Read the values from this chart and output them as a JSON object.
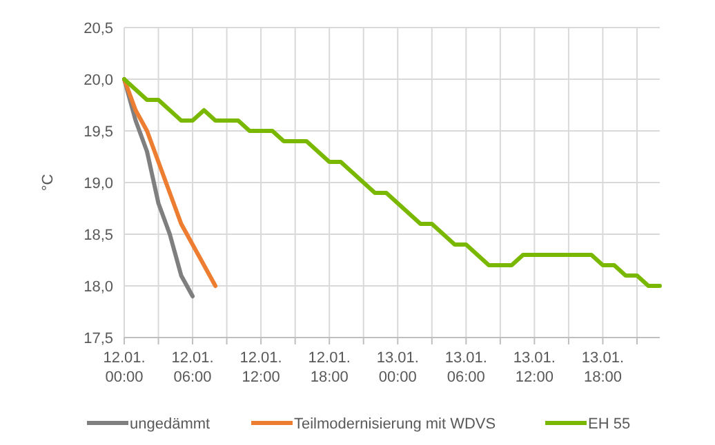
{
  "chart_data": {
    "type": "line",
    "ylabel": "°C",
    "categories": [
      "12.01. 00:00",
      null,
      null,
      null,
      null,
      null,
      "12.01. 06:00",
      null,
      null,
      null,
      null,
      null,
      "12.01. 12:00",
      null,
      null,
      null,
      null,
      null,
      "12.01. 18:00",
      null,
      null,
      null,
      null,
      null,
      "13.01. 00:00",
      null,
      null,
      null,
      null,
      null,
      "13.01. 06:00",
      null,
      null,
      null,
      null,
      null,
      "13.01. 12:00",
      null,
      null,
      null,
      null,
      null,
      "13.01. 18:00",
      null,
      null,
      null,
      null,
      null
    ],
    "series": [
      {
        "name": "ungedämmt",
        "color": "#7f7f7f",
        "values": [
          20.0,
          19.6,
          19.3,
          18.8,
          18.5,
          18.1,
          17.9,
          null,
          null,
          null,
          null,
          null,
          null,
          null,
          null,
          null,
          null,
          null,
          null,
          null,
          null,
          null,
          null,
          null,
          null,
          null,
          null,
          null,
          null,
          null,
          null,
          null,
          null,
          null,
          null,
          null,
          null,
          null,
          null,
          null,
          null,
          null,
          null,
          null,
          null,
          null,
          null,
          null
        ]
      },
      {
        "name": "Teilmodernisierung mit WDVS",
        "color": "#ed7d31",
        "values": [
          20.0,
          19.7,
          19.5,
          19.2,
          18.9,
          18.6,
          18.4,
          18.2,
          18.0,
          null,
          null,
          null,
          null,
          null,
          null,
          null,
          null,
          null,
          null,
          null,
          null,
          null,
          null,
          null,
          null,
          null,
          null,
          null,
          null,
          null,
          null,
          null,
          null,
          null,
          null,
          null,
          null,
          null,
          null,
          null,
          null,
          null,
          null,
          null,
          null,
          null,
          null,
          null
        ]
      },
      {
        "name": "EH 55",
        "color": "#7ab800",
        "values": [
          20.0,
          19.9,
          19.8,
          19.8,
          19.7,
          19.6,
          19.6,
          19.7,
          19.6,
          19.6,
          19.6,
          19.5,
          19.5,
          19.5,
          19.4,
          19.4,
          19.4,
          19.3,
          19.2,
          19.2,
          19.1,
          19.0,
          18.9,
          18.9,
          18.8,
          18.7,
          18.6,
          18.6,
          18.5,
          18.4,
          18.4,
          18.3,
          18.2,
          18.2,
          18.2,
          18.3,
          18.3,
          18.3,
          18.3,
          18.3,
          18.3,
          18.3,
          18.2,
          18.2,
          18.1,
          18.1,
          18.0,
          18.0
        ]
      }
    ],
    "ylim": [
      17.5,
      20.5
    ],
    "yticks": [
      {
        "value": 17.5,
        "label": "17,5"
      },
      {
        "value": 18,
        "label": "18,0"
      },
      {
        "value": 18.5,
        "label": "18,5"
      },
      {
        "value": 19,
        "label": "19,0"
      },
      {
        "value": 19.5,
        "label": "19,5"
      },
      {
        "value": 20,
        "label": "20,0"
      },
      {
        "value": 20.5,
        "label": "20,5"
      }
    ],
    "grid": true,
    "legend": "bottom",
    "line_style": "solid"
  }
}
